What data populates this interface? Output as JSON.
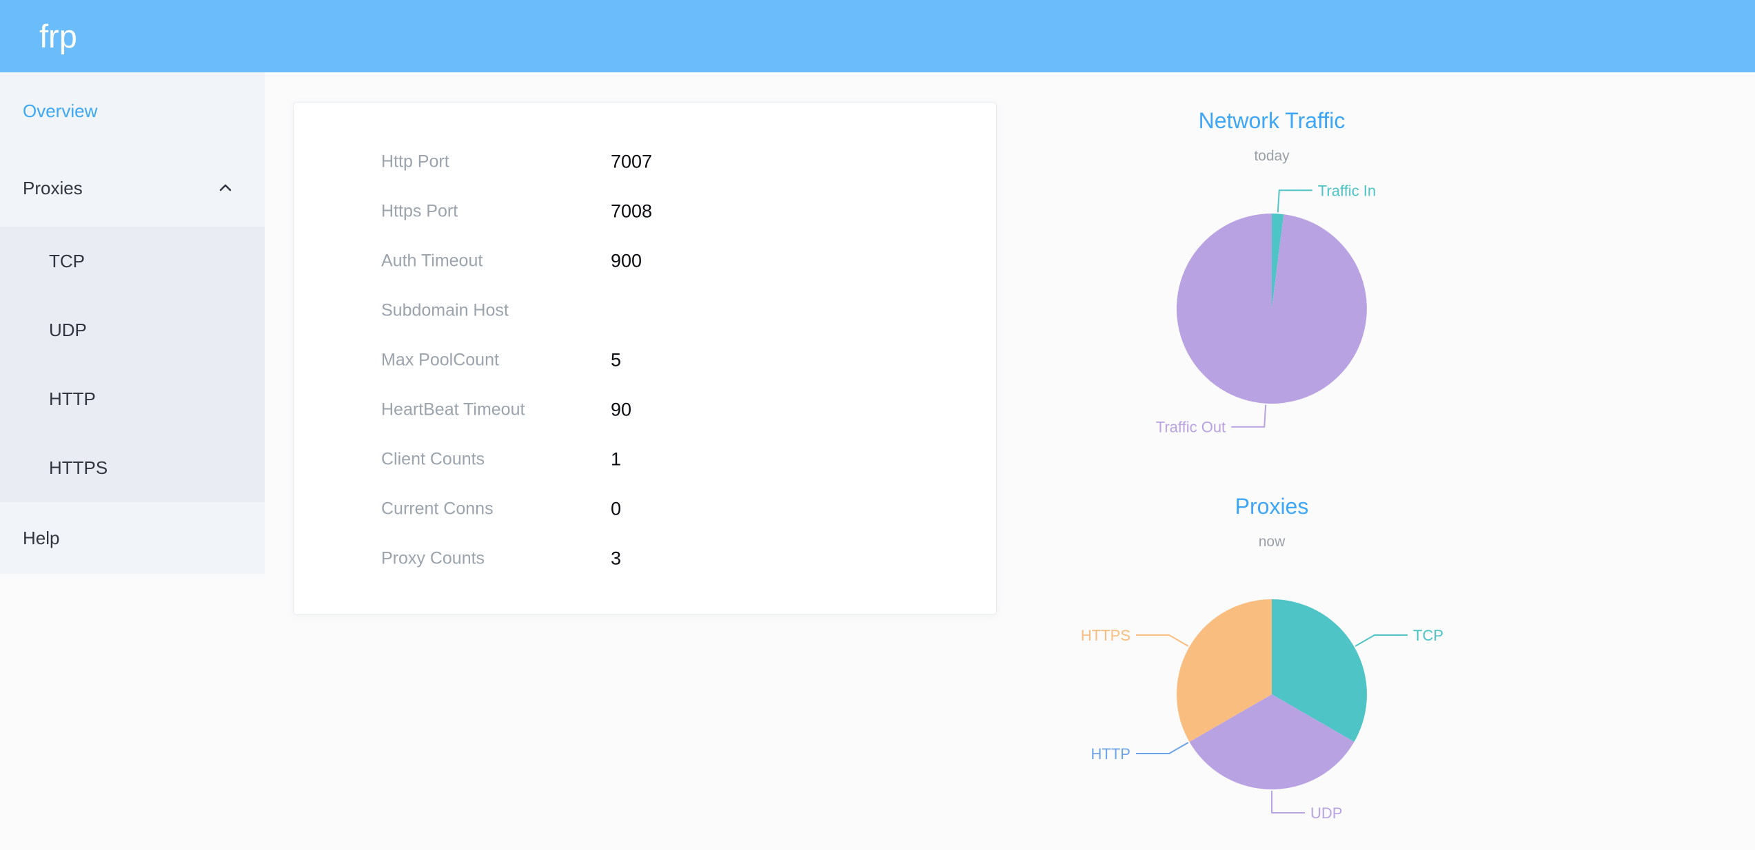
{
  "header": {
    "logo": "frp"
  },
  "sidebar": {
    "overview": "Overview",
    "proxies": "Proxies",
    "submenu": [
      "TCP",
      "UDP",
      "HTTP",
      "HTTPS"
    ],
    "help": "Help"
  },
  "server_info": {
    "rows": [
      {
        "label": "Http Port",
        "value": "7007"
      },
      {
        "label": "Https Port",
        "value": "7008"
      },
      {
        "label": "Auth Timeout",
        "value": "900"
      },
      {
        "label": "Subdomain Host",
        "value": ""
      },
      {
        "label": "Max PoolCount",
        "value": "5"
      },
      {
        "label": "HeartBeat Timeout",
        "value": "90"
      },
      {
        "label": "Client Counts",
        "value": "1"
      },
      {
        "label": "Current Conns",
        "value": "0"
      },
      {
        "label": "Proxy Counts",
        "value": "3"
      }
    ]
  },
  "chart_data": [
    {
      "type": "pie",
      "title": "Network Traffic",
      "subtitle": "today",
      "labels": [
        "Traffic In",
        "Traffic Out"
      ],
      "values": [
        2,
        98
      ],
      "colors": [
        "#4fc4c6",
        "#b9a2e2"
      ],
      "legend_position": "outside-labels"
    },
    {
      "type": "pie",
      "title": "Proxies",
      "subtitle": "now",
      "labels": [
        "TCP",
        "UDP",
        "HTTP",
        "HTTPS"
      ],
      "values": [
        1,
        1,
        0,
        1
      ],
      "colors": [
        "#4fc4c6",
        "#b9a2e2",
        "#6ba3e8",
        "#f9bd80"
      ],
      "legend_position": "outside-labels"
    }
  ],
  "theme": {
    "header_background": "#6abcfb",
    "accent_blue": "#3da8f5",
    "teal": "#4fc4c6",
    "purple": "#b9a2e2",
    "orange": "#f9bd80",
    "http_label_blue": "#6ba3e8"
  }
}
